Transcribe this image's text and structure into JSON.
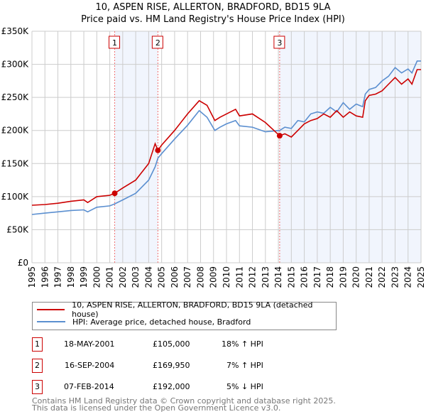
{
  "chart_data": {
    "type": "line",
    "title": "10, ASPEN RISE, ALLERTON, BRADFORD, BD15 9LA",
    "subtitle": "Price paid vs. HM Land Registry's House Price Index (HPI)",
    "xlim": [
      1995,
      2025
    ],
    "ylim": [
      0,
      350000
    ],
    "x_ticks": [
      "1995",
      "1996",
      "1997",
      "1998",
      "1999",
      "2000",
      "2001",
      "2002",
      "2003",
      "2004",
      "2005",
      "2006",
      "2007",
      "2008",
      "2009",
      "2010",
      "2011",
      "2012",
      "2013",
      "2014",
      "2015",
      "2016",
      "2017",
      "2018",
      "2019",
      "2020",
      "2021",
      "2022",
      "2023",
      "2024",
      "2025"
    ],
    "y_ticks": [
      {
        "v": 0,
        "label": "£0"
      },
      {
        "v": 50000,
        "label": "£50K"
      },
      {
        "v": 100000,
        "label": "£100K"
      },
      {
        "v": 150000,
        "label": "£150K"
      },
      {
        "v": 200000,
        "label": "£200K"
      },
      {
        "v": 250000,
        "label": "£250K"
      },
      {
        "v": 300000,
        "label": "£300K"
      },
      {
        "v": 350000,
        "label": "£350K"
      }
    ],
    "grid": true,
    "x": [
      1995,
      1996,
      1997,
      1998,
      1999,
      1999.3,
      2000,
      2001,
      2001.38,
      2002,
      2003,
      2004,
      2004.5,
      2004.71,
      2005,
      2006,
      2007,
      2007.9,
      2008.5,
      2009.1,
      2009.5,
      2010,
      2010.7,
      2011,
      2012,
      2013,
      2014.1,
      2014.5,
      2015,
      2015.5,
      2016,
      2016.5,
      2017,
      2017.5,
      2018,
      2018.5,
      2019,
      2019.5,
      2020,
      2020.5,
      2020.7,
      2021,
      2021.5,
      2022,
      2022.5,
      2023,
      2023.5,
      2024,
      2024.3,
      2024.7,
      2025
    ],
    "series": [
      {
        "name": "10, ASPEN RISE, ALLERTON, BRADFORD, BD15 9LA (detached house)",
        "color": "#cc0000",
        "values": [
          87000,
          88000,
          90000,
          93000,
          95000,
          91000,
          100000,
          102000,
          105000,
          113000,
          125000,
          150000,
          180000,
          169950,
          178000,
          200000,
          225000,
          245000,
          238000,
          215000,
          220000,
          225000,
          232000,
          222000,
          225000,
          212000,
          192000,
          195000,
          190000,
          200000,
          210000,
          215000,
          218000,
          225000,
          220000,
          230000,
          220000,
          228000,
          222000,
          220000,
          245000,
          253000,
          255000,
          260000,
          270000,
          280000,
          270000,
          278000,
          270000,
          292000,
          292000
        ]
      },
      {
        "name": "HPI: Average price, detached house, Bradford",
        "color": "#5b8fd0",
        "values": [
          73000,
          75000,
          77000,
          79000,
          80000,
          77000,
          84000,
          86000,
          89000,
          95000,
          105000,
          125000,
          145000,
          158000,
          165000,
          187000,
          208000,
          230000,
          220000,
          200000,
          205000,
          210000,
          215000,
          207000,
          205000,
          198000,
          200000,
          205000,
          203000,
          215000,
          213000,
          225000,
          228000,
          226000,
          235000,
          228000,
          242000,
          232000,
          240000,
          236000,
          255000,
          262000,
          265000,
          275000,
          282000,
          295000,
          287000,
          293000,
          287000,
          305000,
          305000
        ]
      }
    ],
    "sales": [
      {
        "n": "1",
        "x": 2001.38,
        "y": 105000
      },
      {
        "n": "2",
        "x": 2004.71,
        "y": 169950
      },
      {
        "n": "3",
        "x": 2014.1,
        "y": 192000
      }
    ],
    "shaded": [
      [
        2001.38,
        2004.71
      ],
      [
        2014.1,
        2025
      ]
    ]
  },
  "legend": {
    "property": "10, ASPEN RISE, ALLERTON, BRADFORD, BD15 9LA (detached house)",
    "hpi": "HPI: Average price, detached house, Bradford"
  },
  "table": [
    {
      "n": "1",
      "date": "18-MAY-2001",
      "price": "£105,000",
      "hpi": "18% ↑ HPI"
    },
    {
      "n": "2",
      "date": "16-SEP-2004",
      "price": "£169,950",
      "hpi": "7% ↑ HPI"
    },
    {
      "n": "3",
      "date": "07-FEB-2014",
      "price": "£192,000",
      "hpi": "5% ↓ HPI"
    }
  ],
  "footer": {
    "line1": "Contains HM Land Registry data © Crown copyright and database right 2025.",
    "line2": "This data is licensed under the Open Government Licence v3.0."
  }
}
